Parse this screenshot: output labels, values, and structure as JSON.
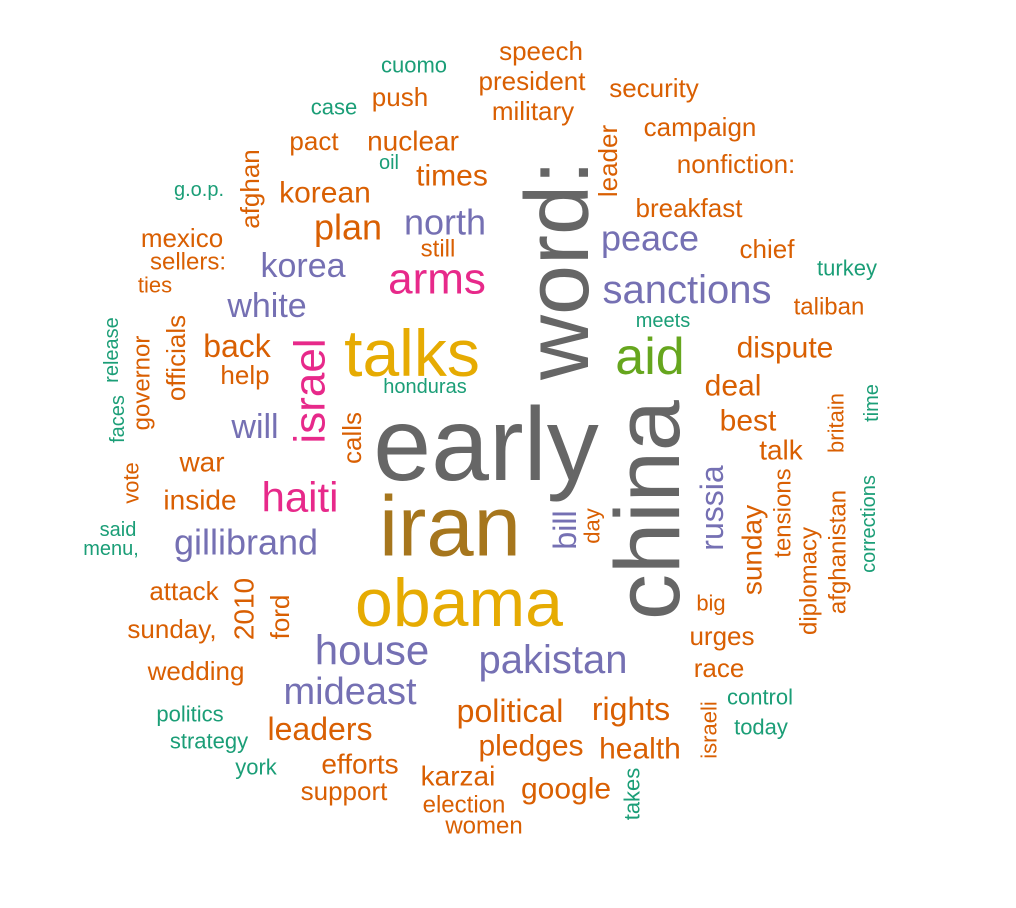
{
  "colors": {
    "gray": "#666666",
    "orange": "#d95f02",
    "purple": "#7570b3",
    "magenta": "#e7298a",
    "green": "#66a61e",
    "gold": "#e6ab02",
    "brown": "#a6761d",
    "teal": "#1b9e77"
  },
  "words": [
    {
      "text": "early",
      "color": "gray"
    },
    {
      "text": "word:",
      "color": "gray"
    },
    {
      "text": "china",
      "color": "gray"
    },
    {
      "text": "iran",
      "color": "brown"
    },
    {
      "text": "obama",
      "color": "gold"
    },
    {
      "text": "talks",
      "color": "gold"
    },
    {
      "text": "aid",
      "color": "green"
    },
    {
      "text": "arms",
      "color": "magenta"
    },
    {
      "text": "israel",
      "color": "magenta"
    },
    {
      "text": "haiti",
      "color": "magenta"
    },
    {
      "text": "sanctions",
      "color": "purple"
    },
    {
      "text": "peace",
      "color": "purple"
    },
    {
      "text": "north",
      "color": "purple"
    },
    {
      "text": "korea",
      "color": "purple"
    },
    {
      "text": "white",
      "color": "purple"
    },
    {
      "text": "will",
      "color": "purple"
    },
    {
      "text": "gillibrand",
      "color": "purple"
    },
    {
      "text": "house",
      "color": "purple"
    },
    {
      "text": "mideast",
      "color": "purple"
    },
    {
      "text": "pakistan",
      "color": "purple"
    },
    {
      "text": "bill",
      "color": "purple"
    },
    {
      "text": "russia",
      "color": "purple"
    },
    {
      "text": "speech",
      "color": "orange"
    },
    {
      "text": "president",
      "color": "orange"
    },
    {
      "text": "security",
      "color": "orange"
    },
    {
      "text": "push",
      "color": "orange"
    },
    {
      "text": "military",
      "color": "orange"
    },
    {
      "text": "pact",
      "color": "orange"
    },
    {
      "text": "nuclear",
      "color": "orange"
    },
    {
      "text": "campaign",
      "color": "orange"
    },
    {
      "text": "leader",
      "color": "orange"
    },
    {
      "text": "nonfiction:",
      "color": "orange"
    },
    {
      "text": "times",
      "color": "orange"
    },
    {
      "text": "korean",
      "color": "orange"
    },
    {
      "text": "afghan",
      "color": "orange"
    },
    {
      "text": "breakfast",
      "color": "orange"
    },
    {
      "text": "plan",
      "color": "orange"
    },
    {
      "text": "mexico",
      "color": "orange"
    },
    {
      "text": "still",
      "color": "orange"
    },
    {
      "text": "chief",
      "color": "orange"
    },
    {
      "text": "sellers:",
      "color": "orange"
    },
    {
      "text": "ties",
      "color": "orange"
    },
    {
      "text": "taliban",
      "color": "orange"
    },
    {
      "text": "officials",
      "color": "orange"
    },
    {
      "text": "governor",
      "color": "orange"
    },
    {
      "text": "back",
      "color": "orange"
    },
    {
      "text": "help",
      "color": "orange"
    },
    {
      "text": "dispute",
      "color": "orange"
    },
    {
      "text": "deal",
      "color": "orange"
    },
    {
      "text": "best",
      "color": "orange"
    },
    {
      "text": "calls",
      "color": "orange"
    },
    {
      "text": "britain",
      "color": "orange"
    },
    {
      "text": "talk",
      "color": "orange"
    },
    {
      "text": "war",
      "color": "orange"
    },
    {
      "text": "vote",
      "color": "orange"
    },
    {
      "text": "inside",
      "color": "orange"
    },
    {
      "text": "tensions",
      "color": "orange"
    },
    {
      "text": "afghanistan",
      "color": "orange"
    },
    {
      "text": "day",
      "color": "orange"
    },
    {
      "text": "sunday",
      "color": "orange"
    },
    {
      "text": "diplomacy",
      "color": "orange"
    },
    {
      "text": "attack",
      "color": "orange"
    },
    {
      "text": "2010",
      "color": "orange"
    },
    {
      "text": "ford",
      "color": "orange"
    },
    {
      "text": "big",
      "color": "orange"
    },
    {
      "text": "sunday,",
      "color": "orange"
    },
    {
      "text": "urges",
      "color": "orange"
    },
    {
      "text": "wedding",
      "color": "orange"
    },
    {
      "text": "race",
      "color": "orange"
    },
    {
      "text": "political",
      "color": "orange"
    },
    {
      "text": "rights",
      "color": "orange"
    },
    {
      "text": "leaders",
      "color": "orange"
    },
    {
      "text": "israeli",
      "color": "orange"
    },
    {
      "text": "pledges",
      "color": "orange"
    },
    {
      "text": "health",
      "color": "orange"
    },
    {
      "text": "efforts",
      "color": "orange"
    },
    {
      "text": "karzai",
      "color": "orange"
    },
    {
      "text": "support",
      "color": "orange"
    },
    {
      "text": "google",
      "color": "orange"
    },
    {
      "text": "election",
      "color": "orange"
    },
    {
      "text": "women",
      "color": "orange"
    },
    {
      "text": "cuomo",
      "color": "teal"
    },
    {
      "text": "case",
      "color": "teal"
    },
    {
      "text": "oil",
      "color": "teal"
    },
    {
      "text": "g.o.p.",
      "color": "teal"
    },
    {
      "text": "turkey",
      "color": "teal"
    },
    {
      "text": "release",
      "color": "teal"
    },
    {
      "text": "meets",
      "color": "teal"
    },
    {
      "text": "faces",
      "color": "teal"
    },
    {
      "text": "honduras",
      "color": "teal"
    },
    {
      "text": "time",
      "color": "teal"
    },
    {
      "text": "said",
      "color": "teal"
    },
    {
      "text": "menu,",
      "color": "teal"
    },
    {
      "text": "corrections",
      "color": "teal"
    },
    {
      "text": "control",
      "color": "teal"
    },
    {
      "text": "politics",
      "color": "teal"
    },
    {
      "text": "today",
      "color": "teal"
    },
    {
      "text": "strategy",
      "color": "teal"
    },
    {
      "text": "york",
      "color": "teal"
    },
    {
      "text": "takes",
      "color": "teal"
    }
  ]
}
